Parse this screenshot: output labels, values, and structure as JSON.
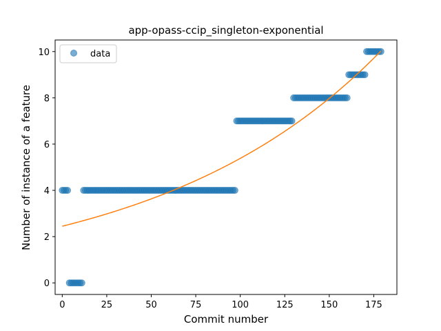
{
  "chart_data": {
    "type": "scatter",
    "title": "app-opass-ccip_singleton-exponential",
    "xlabel": "Commit number",
    "ylabel": "Number of instance of a feature",
    "xlim": [
      -4,
      188
    ],
    "ylim": [
      -0.5,
      10.5
    ],
    "xticks": [
      0,
      25,
      50,
      75,
      100,
      125,
      150,
      175
    ],
    "yticks": [
      0,
      2,
      4,
      6,
      8,
      10
    ],
    "grid": false,
    "legend_position": "top-left",
    "colors": {
      "data": "#1f77b4",
      "fit": "#ff7f0e"
    },
    "series": [
      {
        "name": "data",
        "kind": "points",
        "segments": [
          {
            "x_start": 0,
            "x_end": 3,
            "y": 4
          },
          {
            "x_start": 4,
            "x_end": 11,
            "y": 0
          },
          {
            "x_start": 12,
            "x_end": 97,
            "y": 4
          },
          {
            "x_start": 98,
            "x_end": 129,
            "y": 7
          },
          {
            "x_start": 130,
            "x_end": 160,
            "y": 8
          },
          {
            "x_start": 161,
            "x_end": 170,
            "y": 9
          },
          {
            "x_start": 171,
            "x_end": 179,
            "y": 10
          }
        ]
      },
      {
        "name": "",
        "kind": "fit-line",
        "model": "exponential",
        "a": 2.45,
        "b": 0.00787,
        "x_start": 0,
        "x_end": 179
      }
    ]
  }
}
